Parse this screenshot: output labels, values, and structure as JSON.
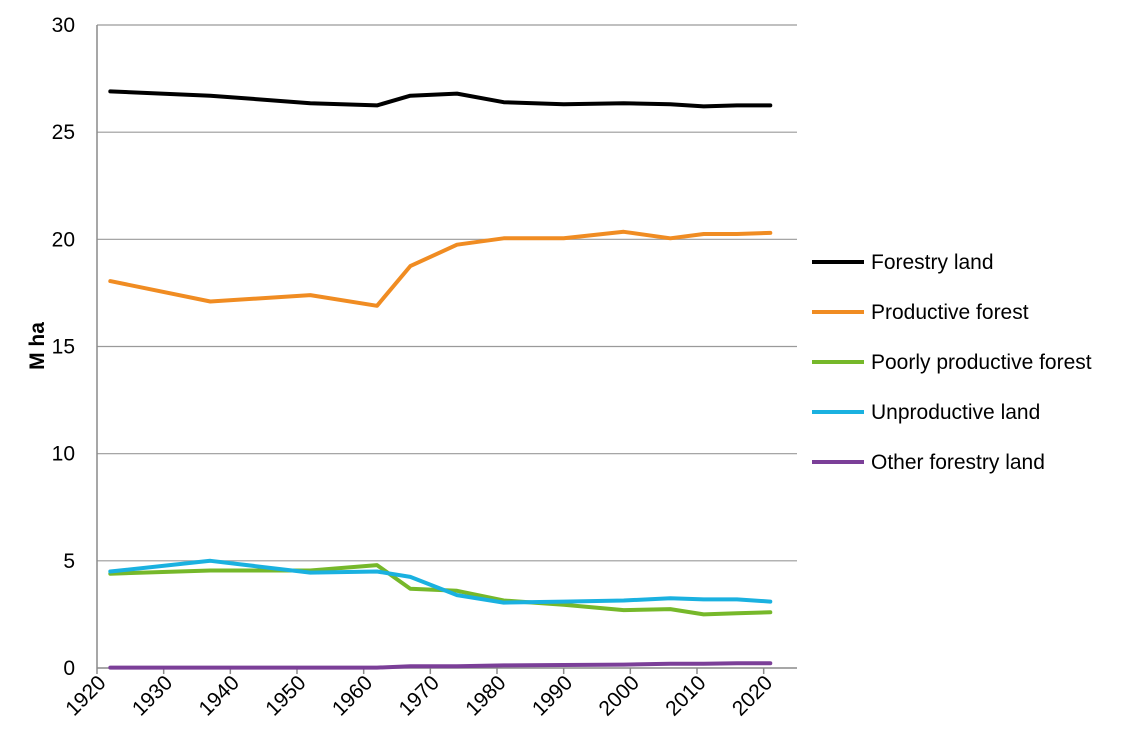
{
  "chart_data": {
    "type": "line",
    "title": "",
    "xlabel": "",
    "ylabel": "M ha",
    "xlim": [
      1920,
      2025
    ],
    "ylim": [
      0,
      30
    ],
    "grid": true,
    "legend_position": "right",
    "x_ticks": [
      1920,
      1930,
      1940,
      1950,
      1960,
      1970,
      1980,
      1990,
      2000,
      2010,
      2020
    ],
    "y_ticks": [
      0,
      5,
      10,
      15,
      20,
      25,
      30
    ],
    "series": [
      {
        "name": "Forestry land",
        "color": "#000000",
        "x": [
          1922,
          1937,
          1952,
          1962,
          1967,
          1974,
          1981,
          1990,
          1999,
          2006,
          2011,
          2016,
          2021
        ],
        "values": [
          26.9,
          26.7,
          26.35,
          26.25,
          26.7,
          26.8,
          26.4,
          26.3,
          26.35,
          26.3,
          26.2,
          26.25,
          26.25
        ]
      },
      {
        "name": "Productive forest",
        "color": "#f08c22",
        "x": [
          1922,
          1937,
          1952,
          1962,
          1967,
          1974,
          1981,
          1990,
          1999,
          2006,
          2011,
          2016,
          2021
        ],
        "values": [
          18.05,
          17.1,
          17.4,
          16.9,
          18.75,
          19.75,
          20.05,
          20.05,
          20.35,
          20.05,
          20.25,
          20.25,
          20.3
        ]
      },
      {
        "name": "Poorly productive forest",
        "color": "#76b82a",
        "x": [
          1922,
          1937,
          1952,
          1962,
          1967,
          1974,
          1981,
          1990,
          1999,
          2006,
          2011,
          2016,
          2021
        ],
        "values": [
          4.4,
          4.55,
          4.55,
          4.8,
          3.7,
          3.6,
          3.15,
          2.95,
          2.7,
          2.75,
          2.5,
          2.55,
          2.6
        ]
      },
      {
        "name": "Unproductive land",
        "color": "#1ab1e0",
        "x": [
          1922,
          1937,
          1952,
          1962,
          1967,
          1974,
          1981,
          1990,
          1999,
          2006,
          2011,
          2016,
          2021
        ],
        "values": [
          4.5,
          5.0,
          4.45,
          4.5,
          4.25,
          3.4,
          3.05,
          3.1,
          3.15,
          3.25,
          3.2,
          3.2,
          3.1
        ]
      },
      {
        "name": "Other forestry land",
        "color": "#7b3f98",
        "x": [
          1922,
          1937,
          1952,
          1962,
          1967,
          1974,
          1981,
          1990,
          1999,
          2006,
          2011,
          2016,
          2021
        ],
        "values": [
          0.02,
          0.02,
          0.02,
          0.02,
          0.08,
          0.08,
          0.12,
          0.14,
          0.16,
          0.2,
          0.2,
          0.22,
          0.22
        ]
      }
    ]
  }
}
